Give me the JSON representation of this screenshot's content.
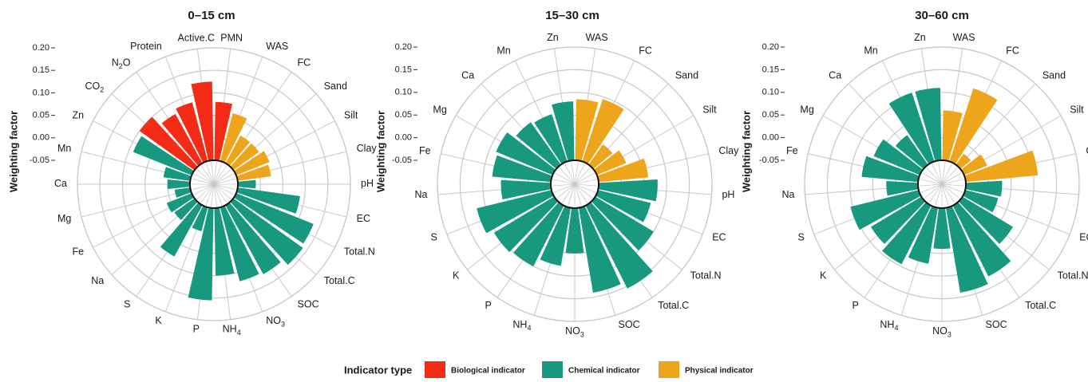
{
  "colors": {
    "biological": "#f42b16",
    "chemical": "#17987f",
    "physical": "#eda51c",
    "grid": "#c8c8c8",
    "text": "#1a1a1a"
  },
  "y_axis_label": "Weighting factor",
  "legend": {
    "title": "Indicator type",
    "items": [
      {
        "label": "Biological indicator",
        "key": "biological"
      },
      {
        "label": "Chemical indicator",
        "key": "chemical"
      },
      {
        "label": "Physical indicator",
        "key": "physical"
      }
    ]
  },
  "chart_data": [
    {
      "type": "bar",
      "polar": true,
      "title": "0–15 cm",
      "ylabel": "Weighting factor",
      "ylim": [
        -0.05,
        0.2
      ],
      "yticks": [
        "0.20",
        "0.15",
        "0.10",
        "0.05",
        "0.00",
        "-0.05"
      ],
      "categories": [
        "PMN",
        "WAS",
        "FC",
        "Sand",
        "Silt",
        "Clay",
        "pH",
        "EC",
        "Total.N",
        "Total.C",
        "SOC",
        "NO3",
        "NH4",
        "P",
        "K",
        "S",
        "Na",
        "Fe",
        "Mg",
        "Ca",
        "Mn",
        "Zn",
        "CO2",
        "N2O",
        "Protein",
        "Active.C"
      ],
      "values": [
        0.08,
        0.06,
        0.02,
        0.02,
        0.03,
        0.025,
        -0.01,
        0.09,
        0.135,
        0.14,
        0.125,
        0.12,
        0.1,
        0.155,
        0.005,
        0.08,
        0.005,
        0.01,
        -0.015,
        0.0,
        0.01,
        0.09,
        0.1,
        0.075,
        0.085,
        0.125
      ],
      "types": [
        "biological",
        "physical",
        "physical",
        "physical",
        "physical",
        "physical",
        "chemical",
        "chemical",
        "chemical",
        "chemical",
        "chemical",
        "chemical",
        "chemical",
        "chemical",
        "chemical",
        "chemical",
        "chemical",
        "chemical",
        "chemical",
        "chemical",
        "chemical",
        "chemical",
        "biological",
        "biological",
        "biological",
        "biological"
      ]
    },
    {
      "type": "bar",
      "polar": true,
      "title": "15–30 cm",
      "ylabel": "Weighting factor",
      "ylim": [
        -0.05,
        0.2
      ],
      "yticks": [
        "0.20",
        "0.15",
        "0.10",
        "0.05",
        "0.00",
        "-0.05"
      ],
      "categories": [
        "WAS",
        "FC",
        "Sand",
        "Silt",
        "Clay",
        "pH",
        "EC",
        "Total.N",
        "Total.C",
        "SOC",
        "NO3",
        "NH4",
        "P",
        "K",
        "S",
        "Na",
        "Fe",
        "Mg",
        "Ca",
        "Mn",
        "Zn"
      ],
      "values": [
        0.085,
        0.095,
        0.005,
        0.02,
        0.06,
        0.08,
        0.07,
        0.1,
        0.155,
        0.14,
        0.05,
        0.08,
        0.1,
        0.105,
        0.12,
        0.06,
        0.08,
        0.085,
        0.065,
        0.06,
        0.08
      ],
      "types": [
        "physical",
        "physical",
        "physical",
        "physical",
        "physical",
        "chemical",
        "chemical",
        "chemical",
        "chemical",
        "chemical",
        "chemical",
        "chemical",
        "chemical",
        "chemical",
        "chemical",
        "chemical",
        "chemical",
        "chemical",
        "chemical",
        "chemical",
        "chemical"
      ]
    },
    {
      "type": "bar",
      "polar": true,
      "title": "30–60 cm",
      "ylabel": "Weighting factor",
      "ylim": [
        -0.05,
        0.2
      ],
      "yticks": [
        "0.20",
        "0.15",
        "0.10",
        "0.05",
        "0.00",
        "-0.05"
      ],
      "categories": [
        "WAS",
        "FC",
        "Sand",
        "Silt",
        "Clay",
        "pH",
        "EC",
        "Total.N",
        "Total.C",
        "SOC",
        "NO3",
        "NH4",
        "P",
        "K",
        "S",
        "Na",
        "Fe",
        "Mg",
        "Ca",
        "Mn",
        "Zn"
      ],
      "values": [
        0.06,
        0.12,
        -0.02,
        0.005,
        0.11,
        0.03,
        0.025,
        0.08,
        0.125,
        0.14,
        0.04,
        0.075,
        0.095,
        0.08,
        0.105,
        0.02,
        0.075,
        0.06,
        0.03,
        0.11,
        0.11
      ],
      "types": [
        "physical",
        "physical",
        "physical",
        "physical",
        "physical",
        "chemical",
        "chemical",
        "chemical",
        "chemical",
        "chemical",
        "chemical",
        "chemical",
        "chemical",
        "chemical",
        "chemical",
        "chemical",
        "chemical",
        "chemical",
        "chemical",
        "chemical",
        "chemical"
      ]
    }
  ]
}
